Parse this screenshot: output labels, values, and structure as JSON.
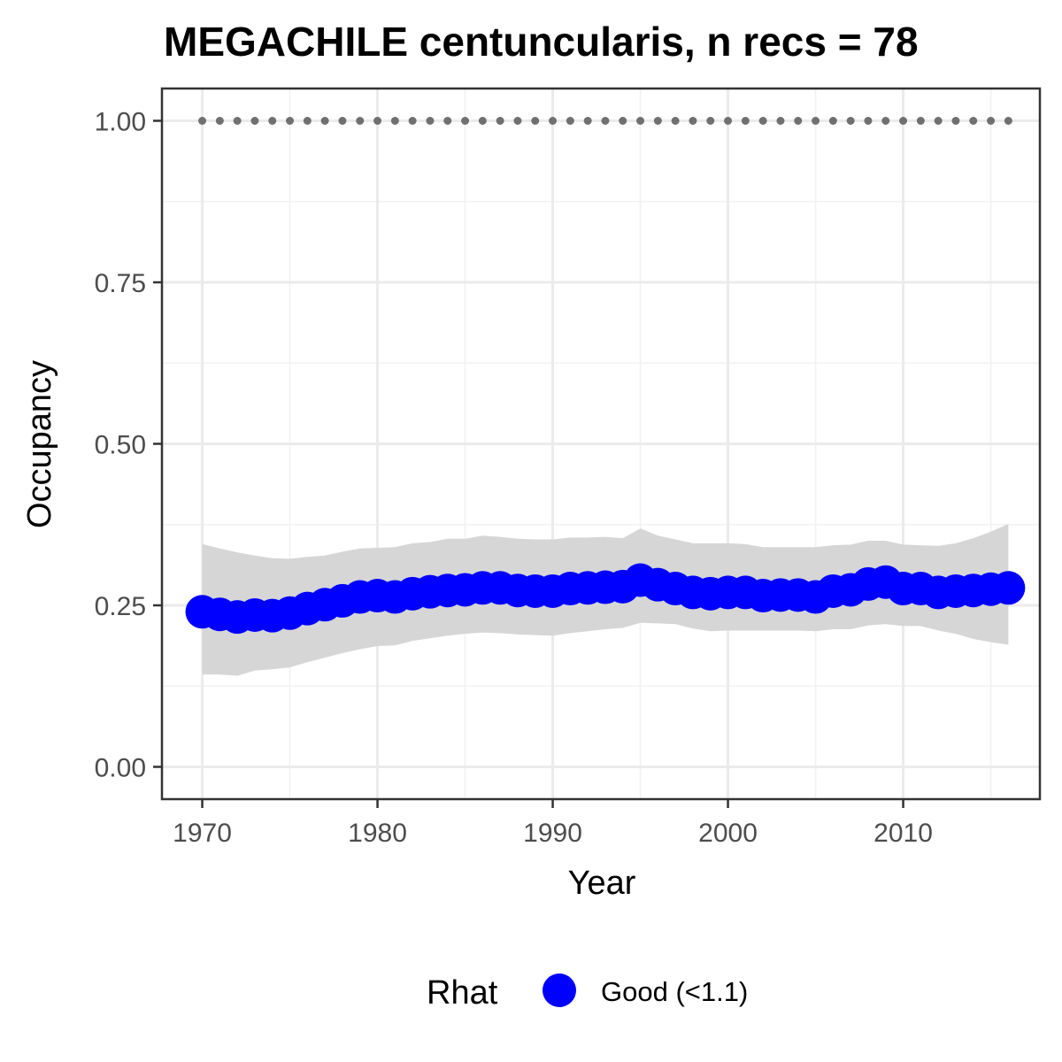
{
  "chart_data": {
    "type": "line",
    "title": "MEGACHILE centuncularis, n recs = 78",
    "xlabel": "Year",
    "ylabel": "Occupancy",
    "xlim": [
      1967.7,
      2017.8
    ],
    "ylim": [
      -0.05,
      1.05
    ],
    "x_ticks": [
      1970,
      1980,
      1990,
      2000,
      2010
    ],
    "x_tick_labels": [
      "1970",
      "1980",
      "1990",
      "2000",
      "2010"
    ],
    "x_minor_ticks": [
      1975,
      1985,
      1995,
      2005,
      2015
    ],
    "y_ticks": [
      0.0,
      0.25,
      0.5,
      0.75,
      1.0
    ],
    "y_tick_labels": [
      "0.00",
      "0.25",
      "0.50",
      "0.75",
      "1.00"
    ],
    "y_minor_ticks": [
      0.125,
      0.375,
      0.625,
      0.875
    ],
    "grid": true,
    "x": [
      1970,
      1971,
      1972,
      1973,
      1974,
      1975,
      1976,
      1977,
      1978,
      1979,
      1980,
      1981,
      1982,
      1983,
      1984,
      1985,
      1986,
      1987,
      1988,
      1989,
      1990,
      1991,
      1992,
      1993,
      1994,
      1995,
      1996,
      1997,
      1998,
      1999,
      2000,
      2001,
      2002,
      2003,
      2004,
      2005,
      2006,
      2007,
      2008,
      2009,
      2010,
      2011,
      2012,
      2013,
      2014,
      2015,
      2016
    ],
    "series": [
      {
        "name": "Good (<1.1)",
        "color": "#0000ff",
        "values": [
          0.24,
          0.236,
          0.232,
          0.235,
          0.234,
          0.238,
          0.245,
          0.251,
          0.257,
          0.263,
          0.265,
          0.263,
          0.268,
          0.271,
          0.273,
          0.274,
          0.277,
          0.277,
          0.273,
          0.272,
          0.272,
          0.276,
          0.277,
          0.278,
          0.279,
          0.289,
          0.282,
          0.276,
          0.27,
          0.268,
          0.27,
          0.27,
          0.265,
          0.266,
          0.266,
          0.263,
          0.272,
          0.274,
          0.283,
          0.286,
          0.276,
          0.276,
          0.27,
          0.272,
          0.273,
          0.275,
          0.277
        ]
      }
    ],
    "ci_upper": [
      0.345,
      0.338,
      0.332,
      0.327,
      0.323,
      0.322,
      0.325,
      0.327,
      0.333,
      0.338,
      0.339,
      0.34,
      0.346,
      0.348,
      0.353,
      0.353,
      0.358,
      0.356,
      0.353,
      0.352,
      0.352,
      0.355,
      0.355,
      0.356,
      0.354,
      0.369,
      0.358,
      0.352,
      0.346,
      0.346,
      0.346,
      0.345,
      0.34,
      0.34,
      0.34,
      0.34,
      0.343,
      0.344,
      0.35,
      0.35,
      0.344,
      0.343,
      0.342,
      0.346,
      0.354,
      0.364,
      0.376
    ],
    "ci_lower": [
      0.143,
      0.143,
      0.141,
      0.149,
      0.151,
      0.154,
      0.162,
      0.169,
      0.176,
      0.182,
      0.187,
      0.188,
      0.195,
      0.199,
      0.203,
      0.206,
      0.208,
      0.207,
      0.205,
      0.204,
      0.203,
      0.207,
      0.21,
      0.213,
      0.215,
      0.223,
      0.222,
      0.221,
      0.214,
      0.21,
      0.211,
      0.211,
      0.211,
      0.211,
      0.211,
      0.21,
      0.213,
      0.213,
      0.219,
      0.221,
      0.218,
      0.218,
      0.211,
      0.206,
      0.198,
      0.193,
      0.189
    ],
    "reference_line": {
      "y": 1.0,
      "style": "dotted",
      "color": "#707070"
    },
    "ci_color": "#d6d6d6",
    "legend": {
      "title": "Rhat",
      "position": "bottom",
      "entries": [
        {
          "label": "Good (<1.1)",
          "color": "#0000ff"
        }
      ]
    }
  }
}
